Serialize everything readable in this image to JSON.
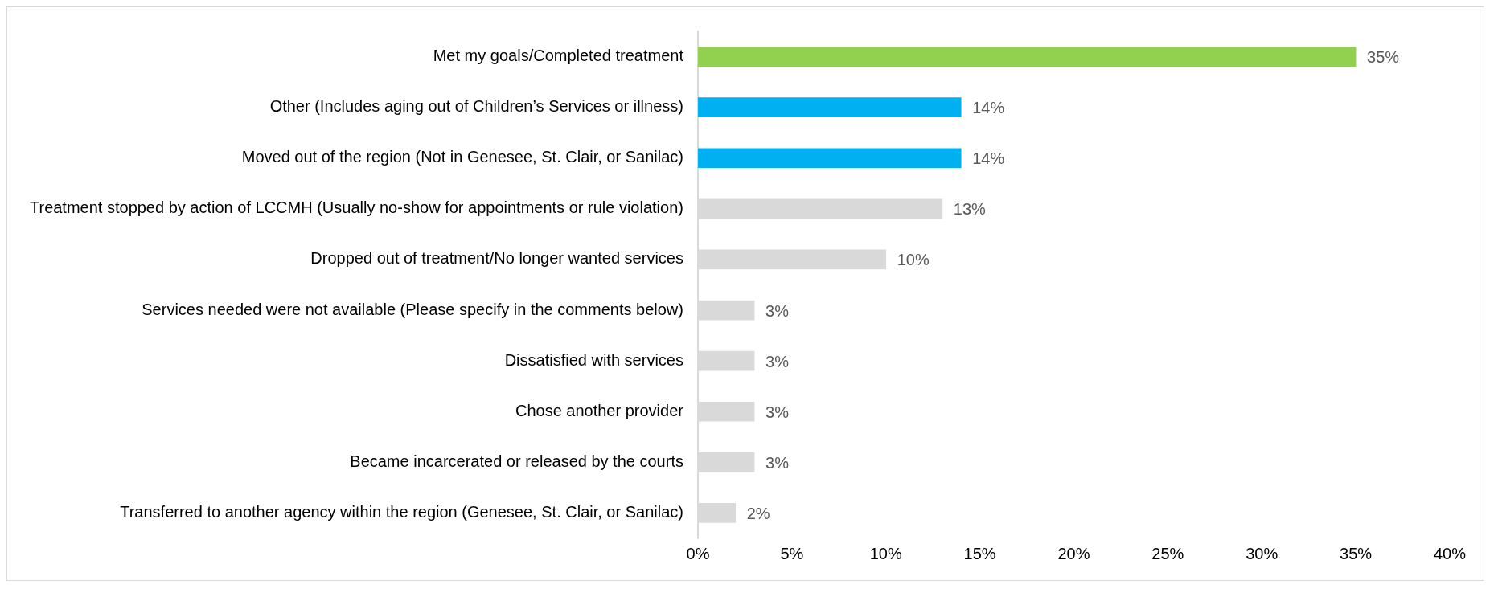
{
  "chart_data": {
    "type": "bar",
    "orientation": "horizontal",
    "categories": [
      "Met my goals/Completed treatment",
      "Other (Includes aging out of Children’s Services or illness)",
      "Moved out of the region (Not in Genesee, St. Clair, or Sanilac)",
      "Treatment stopped by action of LCCMH (Usually no-show for appointments or rule violation)",
      "Dropped out of treatment/No longer wanted services",
      "Services needed were not available (Please specify in the comments below)",
      "Dissatisfied with services",
      "Chose another provider",
      "Became incarcerated or released by the courts",
      "Transferred to another agency within the region (Genesee, St. Clair, or Sanilac)"
    ],
    "values": [
      35,
      14,
      14,
      13,
      10,
      3,
      3,
      3,
      3,
      2
    ],
    "colors": [
      "#92d050",
      "#00b0f0",
      "#00b0f0",
      "#d9d9d9",
      "#d9d9d9",
      "#d9d9d9",
      "#d9d9d9",
      "#d9d9d9",
      "#d9d9d9",
      "#d9d9d9"
    ],
    "value_labels": [
      "35%",
      "14%",
      "14%",
      "13%",
      "10%",
      "3%",
      "3%",
      "3%",
      "3%",
      "2%"
    ],
    "xlim": [
      0,
      40
    ],
    "xticks": [
      {
        "value": 0,
        "label": "0%"
      },
      {
        "value": 5,
        "label": "5%"
      },
      {
        "value": 10,
        "label": "10%"
      },
      {
        "value": 15,
        "label": "15%"
      },
      {
        "value": 20,
        "label": "20%"
      },
      {
        "value": 25,
        "label": "25%"
      },
      {
        "value": 30,
        "label": "30%"
      },
      {
        "value": 35,
        "label": "35%"
      },
      {
        "value": 40,
        "label": "40%"
      }
    ],
    "grid": false,
    "legend": false
  }
}
